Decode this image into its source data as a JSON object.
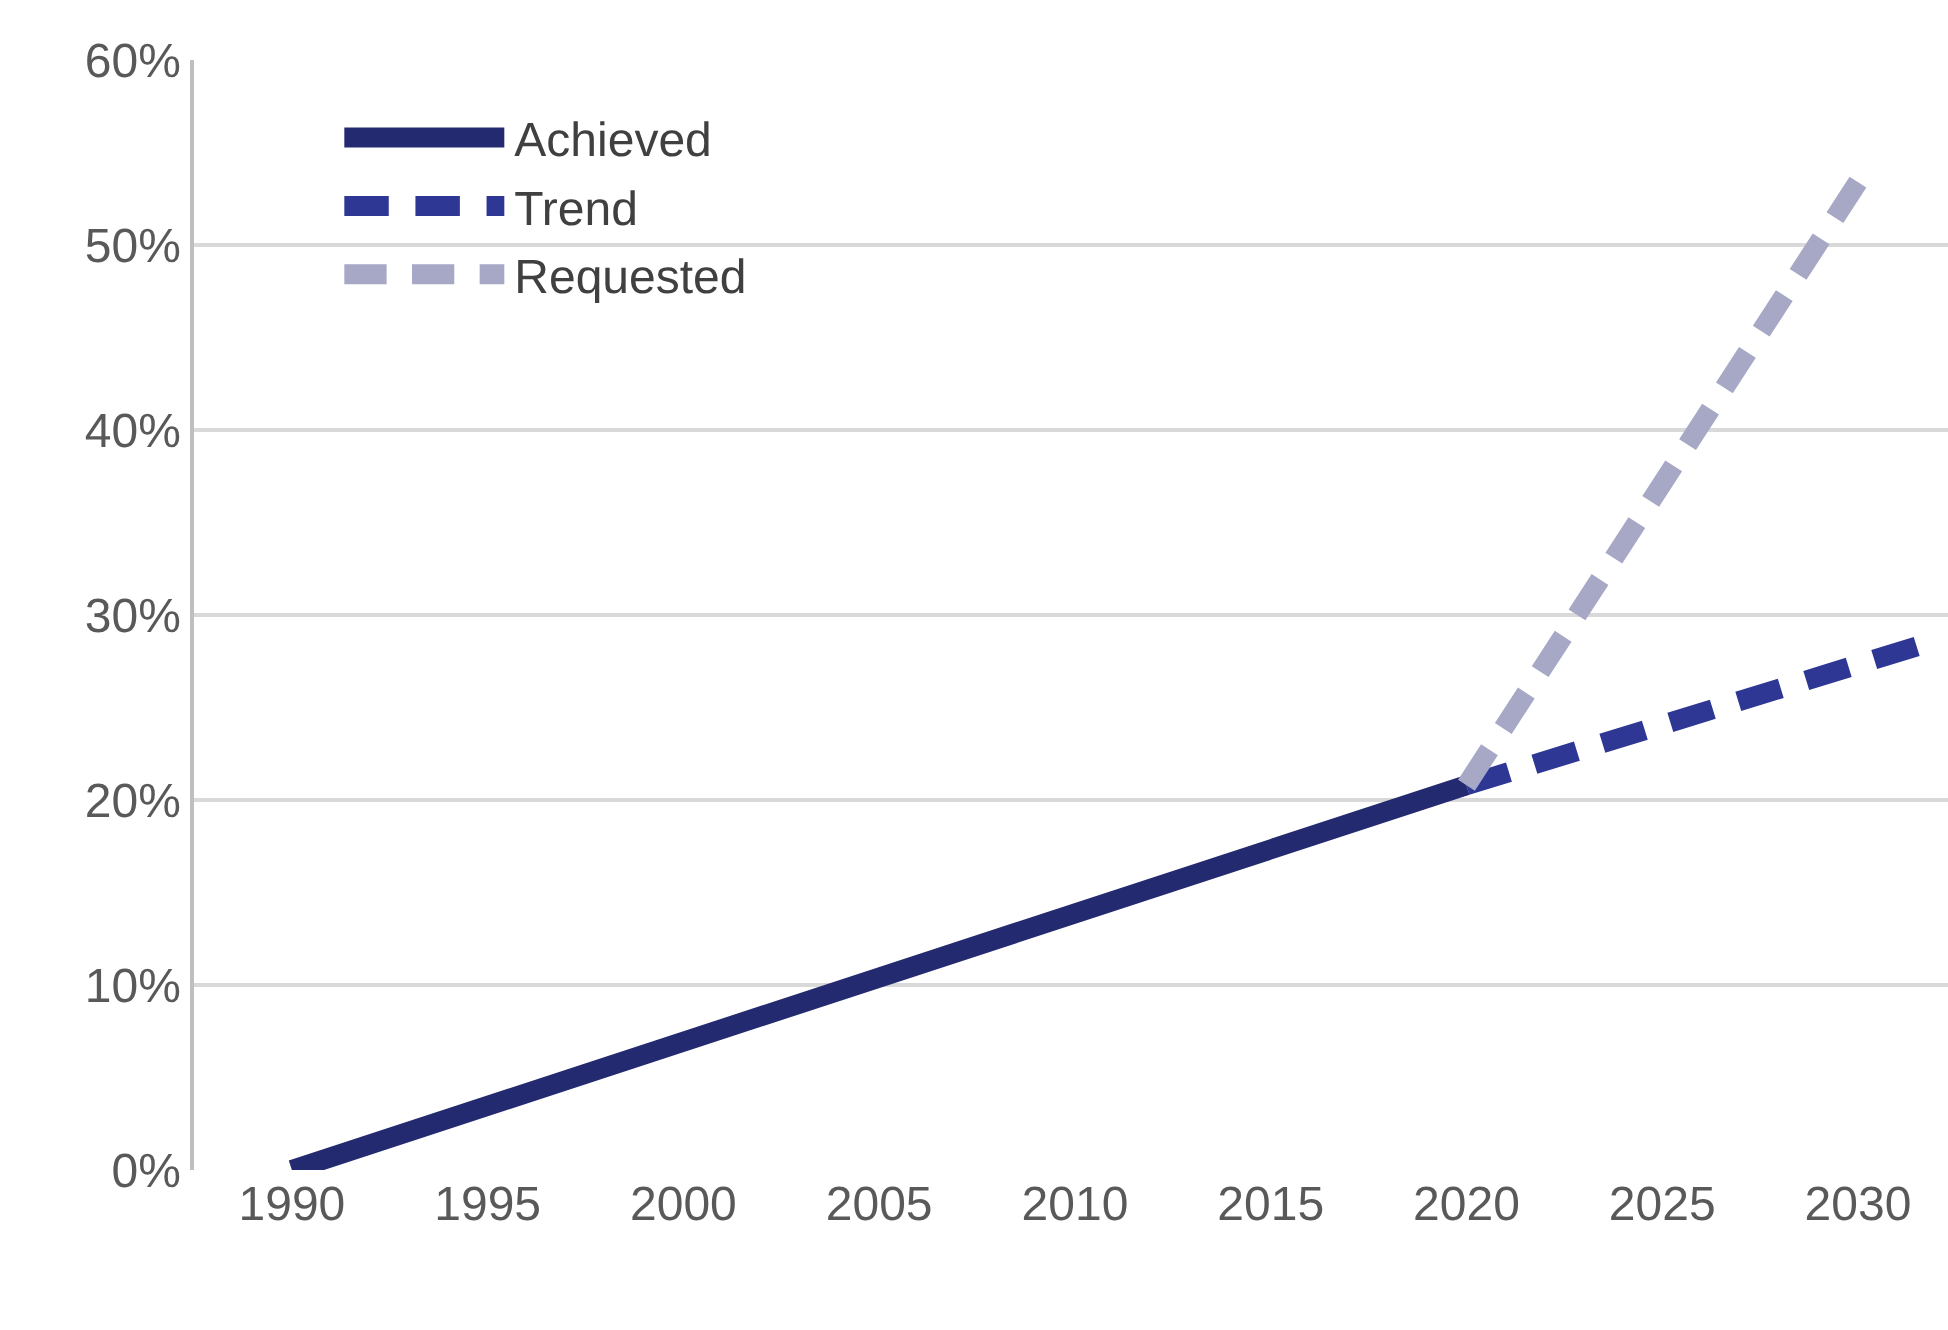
{
  "chart_data": {
    "type": "line",
    "xlim": [
      1987.5,
      2032.3
    ],
    "xticks": [
      1990,
      1995,
      2000,
      2005,
      2010,
      2015,
      2020,
      2025,
      2030
    ],
    "ylim": [
      0,
      60
    ],
    "yticks": [
      {
        "value": 0,
        "label": "0%"
      },
      {
        "value": 10,
        "label": "10%"
      },
      {
        "value": 20,
        "label": "20%"
      },
      {
        "value": 30,
        "label": "30%"
      },
      {
        "value": 40,
        "label": "40%"
      },
      {
        "value": 50,
        "label": "50%"
      },
      {
        "value": 60,
        "label": "60%"
      }
    ],
    "grid": "y",
    "legend": "top left",
    "marker": "none",
    "series": [
      {
        "name": "Achieved",
        "color": "#232a6f",
        "line_style": "solid",
        "x": [
          1990,
          2020
        ],
        "values": [
          0,
          20.8
        ]
      },
      {
        "name": "Trend",
        "color": "#2e3794",
        "line_style": "dashed",
        "x": [
          2020,
          2031.5
        ],
        "values": [
          20.8,
          28.3
        ]
      },
      {
        "name": "Requested",
        "color": "#a6a8c6",
        "line_style": "dashed",
        "x": [
          2020,
          2030
        ],
        "values": [
          20.8,
          53.4
        ]
      }
    ]
  }
}
